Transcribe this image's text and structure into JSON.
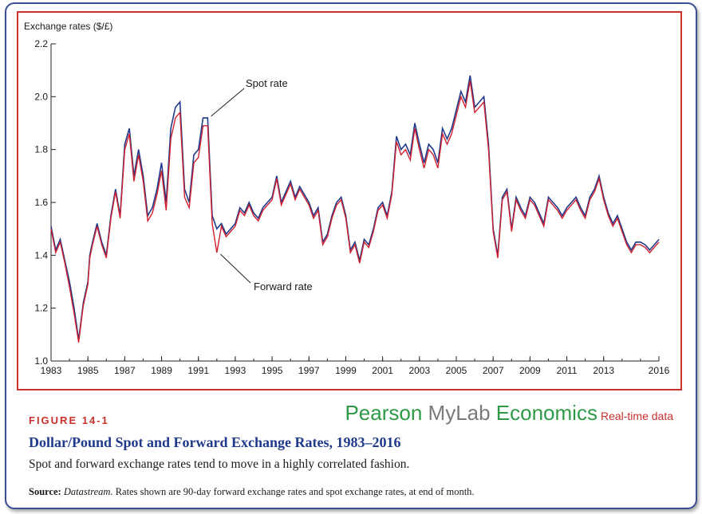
{
  "figure": {
    "number": "FIGURE 14-1",
    "title": "Dollar/Pound Spot and Forward Exchange Rates, 1983–2016",
    "caption": "Spot and forward exchange rates tend to move in a highly correlated fashion.",
    "source_label": "Source:",
    "source_name": "Datastream.",
    "source_text": "Rates shown are 90-day forward exchange rates and spot exchange rates, at end of month."
  },
  "brand": {
    "pearson": "Pearson ",
    "mylab": "MyLab ",
    "economics": "Economics",
    "realtime": "Real-time data"
  },
  "colors": {
    "frame": "#3a4d8f",
    "plot_border": "#c9302c",
    "spot": "#1f3a8a",
    "forward": "#d02030"
  },
  "chart_data": {
    "type": "line",
    "ylabel": "Exchange rates ($/£)",
    "xlabel": "",
    "xlim": [
      1983,
      2016
    ],
    "ylim": [
      1.0,
      2.2
    ],
    "yticks": [
      "1.0",
      "1.2",
      "1.4",
      "1.6",
      "1.8",
      "2.0",
      "2.2"
    ],
    "xticks": [
      "1983",
      "1985",
      "1987",
      "1989",
      "1991",
      "1993",
      "1995",
      "1997",
      "1999",
      "2001",
      "2003",
      "2005",
      "2007",
      "2009",
      "2011",
      "2013",
      "2016"
    ],
    "grid": false,
    "annotations": [
      {
        "text": "Spot rate",
        "series": "spot",
        "x": 1991.6,
        "y": 1.92
      },
      {
        "text": "Forward rate",
        "series": "forward",
        "x": 1992.2,
        "y": 1.41
      }
    ],
    "x": [
      1983.0,
      1983.25,
      1983.5,
      1983.75,
      1984.0,
      1984.25,
      1984.5,
      1984.75,
      1985.0,
      1985.1,
      1985.25,
      1985.5,
      1985.75,
      1986.0,
      1986.25,
      1986.5,
      1986.75,
      1987.0,
      1987.25,
      1987.5,
      1987.75,
      1988.0,
      1988.25,
      1988.5,
      1988.75,
      1989.0,
      1989.25,
      1989.5,
      1989.75,
      1990.0,
      1990.25,
      1990.5,
      1990.75,
      1991.0,
      1991.25,
      1991.5,
      1991.75,
      1992.0,
      1992.25,
      1992.5,
      1992.75,
      1993.0,
      1993.25,
      1993.5,
      1993.75,
      1994.0,
      1994.25,
      1994.5,
      1994.75,
      1995.0,
      1995.25,
      1995.5,
      1995.75,
      1996.0,
      1996.25,
      1996.5,
      1996.75,
      1997.0,
      1997.25,
      1997.5,
      1997.75,
      1998.0,
      1998.25,
      1998.5,
      1998.75,
      1999.0,
      1999.25,
      1999.5,
      1999.75,
      2000.0,
      2000.25,
      2000.5,
      2000.75,
      2001.0,
      2001.25,
      2001.5,
      2001.75,
      2002.0,
      2002.25,
      2002.5,
      2002.75,
      2003.0,
      2003.25,
      2003.5,
      2003.75,
      2004.0,
      2004.25,
      2004.5,
      2004.75,
      2005.0,
      2005.25,
      2005.5,
      2005.75,
      2006.0,
      2006.25,
      2006.5,
      2006.75,
      2007.0,
      2007.25,
      2007.5,
      2007.75,
      2008.0,
      2008.25,
      2008.5,
      2008.75,
      2009.0,
      2009.25,
      2009.5,
      2009.75,
      2010.0,
      2010.25,
      2010.5,
      2010.75,
      2011.0,
      2011.25,
      2011.5,
      2011.75,
      2012.0,
      2012.25,
      2012.5,
      2012.75,
      2013.0,
      2013.25,
      2013.5,
      2013.75,
      2014.0,
      2014.25,
      2014.5,
      2014.75,
      2015.0,
      2015.25,
      2015.5,
      2015.75,
      2016.0
    ],
    "series": [
      {
        "name": "Spot rate",
        "values": [
          1.51,
          1.42,
          1.46,
          1.38,
          1.3,
          1.2,
          1.08,
          1.22,
          1.3,
          1.4,
          1.45,
          1.52,
          1.45,
          1.4,
          1.55,
          1.65,
          1.55,
          1.82,
          1.88,
          1.7,
          1.8,
          1.7,
          1.55,
          1.58,
          1.65,
          1.75,
          1.6,
          1.88,
          1.96,
          1.98,
          1.65,
          1.6,
          1.78,
          1.8,
          1.92,
          1.92,
          1.55,
          1.5,
          1.52,
          1.48,
          1.5,
          1.52,
          1.58,
          1.56,
          1.6,
          1.56,
          1.54,
          1.58,
          1.6,
          1.62,
          1.7,
          1.6,
          1.64,
          1.68,
          1.62,
          1.66,
          1.63,
          1.6,
          1.55,
          1.58,
          1.45,
          1.48,
          1.55,
          1.6,
          1.62,
          1.55,
          1.42,
          1.45,
          1.38,
          1.46,
          1.44,
          1.5,
          1.58,
          1.6,
          1.55,
          1.64,
          1.85,
          1.8,
          1.82,
          1.78,
          1.9,
          1.82,
          1.75,
          1.82,
          1.8,
          1.75,
          1.88,
          1.84,
          1.88,
          1.95,
          2.02,
          1.98,
          2.08,
          1.96,
          1.98,
          2.0,
          1.82,
          1.5,
          1.4,
          1.62,
          1.65,
          1.5,
          1.62,
          1.58,
          1.55,
          1.62,
          1.6,
          1.56,
          1.52,
          1.62,
          1.6,
          1.58,
          1.55,
          1.58,
          1.6,
          1.62,
          1.58,
          1.55,
          1.62,
          1.65,
          1.7,
          1.62,
          1.56,
          1.52,
          1.55,
          1.5,
          1.45,
          1.42,
          1.45,
          1.45,
          1.44,
          1.42,
          1.44,
          1.46
        ]
      },
      {
        "name": "Forward rate",
        "values": [
          1.5,
          1.41,
          1.45,
          1.37,
          1.28,
          1.18,
          1.07,
          1.21,
          1.29,
          1.39,
          1.44,
          1.51,
          1.44,
          1.39,
          1.54,
          1.64,
          1.54,
          1.8,
          1.86,
          1.68,
          1.78,
          1.68,
          1.53,
          1.56,
          1.63,
          1.72,
          1.57,
          1.84,
          1.92,
          1.94,
          1.62,
          1.58,
          1.75,
          1.77,
          1.89,
          1.89,
          1.52,
          1.41,
          1.51,
          1.47,
          1.49,
          1.51,
          1.57,
          1.55,
          1.59,
          1.55,
          1.53,
          1.57,
          1.59,
          1.61,
          1.69,
          1.59,
          1.63,
          1.67,
          1.61,
          1.65,
          1.62,
          1.59,
          1.54,
          1.57,
          1.44,
          1.47,
          1.54,
          1.59,
          1.61,
          1.54,
          1.41,
          1.44,
          1.37,
          1.45,
          1.43,
          1.49,
          1.57,
          1.59,
          1.54,
          1.63,
          1.83,
          1.78,
          1.8,
          1.76,
          1.88,
          1.8,
          1.73,
          1.8,
          1.78,
          1.73,
          1.86,
          1.82,
          1.86,
          1.93,
          2.0,
          1.96,
          2.06,
          1.94,
          1.96,
          1.98,
          1.8,
          1.49,
          1.39,
          1.61,
          1.64,
          1.49,
          1.61,
          1.57,
          1.54,
          1.61,
          1.59,
          1.55,
          1.51,
          1.61,
          1.59,
          1.57,
          1.54,
          1.57,
          1.59,
          1.61,
          1.57,
          1.54,
          1.61,
          1.64,
          1.69,
          1.61,
          1.55,
          1.51,
          1.54,
          1.49,
          1.44,
          1.41,
          1.44,
          1.44,
          1.43,
          1.41,
          1.43,
          1.45
        ]
      }
    ]
  }
}
